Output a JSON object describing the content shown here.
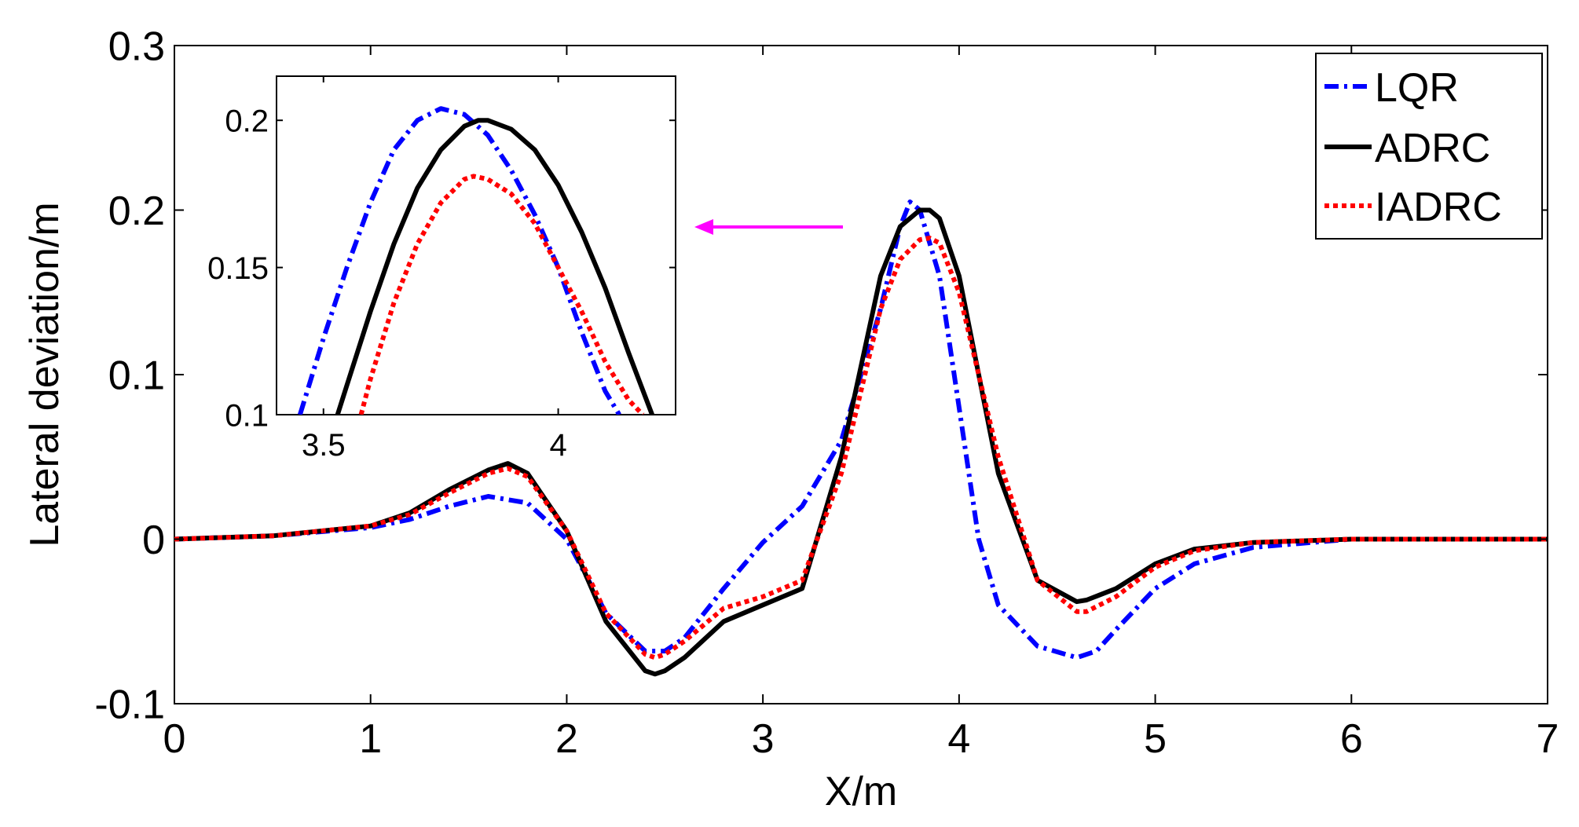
{
  "chart_data": [
    {
      "type": "line",
      "xlabel": "X/m",
      "ylabel": "Lateral deviation/m",
      "xlim": [
        0,
        7
      ],
      "ylim": [
        -0.1,
        0.3
      ],
      "xticks": [
        {
          "value": 0,
          "label": "0"
        },
        {
          "value": 1,
          "label": "1"
        },
        {
          "value": 2,
          "label": "2"
        },
        {
          "value": 3,
          "label": "3"
        },
        {
          "value": 4,
          "label": "4"
        },
        {
          "value": 5,
          "label": "5"
        },
        {
          "value": 6,
          "label": "6"
        },
        {
          "value": 7,
          "label": "7"
        }
      ],
      "yticks": [
        {
          "value": -0.1,
          "label": "-0.1"
        },
        {
          "value": 0,
          "label": "0"
        },
        {
          "value": 0.1,
          "label": "0.1"
        },
        {
          "value": 0.2,
          "label": "0.2"
        },
        {
          "value": 0.3,
          "label": "0.3"
        }
      ],
      "grid": false,
      "legend_position": "top-right",
      "series": [
        {
          "name": "LQR",
          "color": "#0000ff",
          "style": "dash-dot",
          "x": [
            0,
            0.5,
            1.0,
            1.2,
            1.4,
            1.6,
            1.8,
            2.0,
            2.2,
            2.4,
            2.5,
            2.6,
            2.8,
            3.0,
            3.2,
            3.4,
            3.6,
            3.7,
            3.75,
            3.8,
            3.9,
            4.0,
            4.1,
            4.2,
            4.4,
            4.6,
            4.7,
            4.8,
            5.0,
            5.2,
            5.5,
            6.0,
            6.5,
            7.0
          ],
          "y": [
            0,
            0.002,
            0.007,
            0.012,
            0.02,
            0.026,
            0.022,
            0.0,
            -0.045,
            -0.068,
            -0.068,
            -0.06,
            -0.03,
            -0.002,
            0.02,
            0.06,
            0.14,
            0.19,
            0.205,
            0.2,
            0.16,
            0.08,
            0.0,
            -0.04,
            -0.065,
            -0.072,
            -0.068,
            -0.055,
            -0.03,
            -0.015,
            -0.005,
            0.0,
            0.0,
            0.0
          ]
        },
        {
          "name": "ADRC",
          "color": "#000000",
          "style": "solid",
          "x": [
            0,
            0.5,
            1.0,
            1.2,
            1.4,
            1.6,
            1.7,
            1.8,
            2.0,
            2.2,
            2.4,
            2.45,
            2.5,
            2.6,
            2.8,
            3.0,
            3.2,
            3.4,
            3.6,
            3.7,
            3.8,
            3.85,
            3.9,
            4.0,
            4.2,
            4.4,
            4.6,
            4.65,
            4.8,
            5.0,
            5.2,
            5.5,
            6.0,
            6.5,
            7.0
          ],
          "y": [
            0,
            0.002,
            0.008,
            0.016,
            0.03,
            0.042,
            0.046,
            0.04,
            0.005,
            -0.05,
            -0.08,
            -0.082,
            -0.08,
            -0.072,
            -0.05,
            -0.04,
            -0.03,
            0.05,
            0.16,
            0.19,
            0.2,
            0.2,
            0.195,
            0.16,
            0.04,
            -0.025,
            -0.038,
            -0.037,
            -0.03,
            -0.015,
            -0.006,
            -0.002,
            0.0,
            0.0,
            0.0
          ]
        },
        {
          "name": "IADRC",
          "color": "#ff0000",
          "style": "dotted",
          "x": [
            0,
            0.5,
            1.0,
            1.2,
            1.4,
            1.6,
            1.7,
            1.8,
            2.0,
            2.2,
            2.4,
            2.45,
            2.5,
            2.6,
            2.8,
            3.0,
            3.2,
            3.4,
            3.6,
            3.7,
            3.8,
            3.85,
            3.9,
            4.0,
            4.2,
            4.4,
            4.6,
            4.65,
            4.8,
            5.0,
            5.2,
            5.5,
            6.0,
            6.5,
            7.0
          ],
          "y": [
            0,
            0.002,
            0.008,
            0.015,
            0.028,
            0.04,
            0.043,
            0.038,
            0.005,
            -0.045,
            -0.07,
            -0.072,
            -0.07,
            -0.062,
            -0.042,
            -0.035,
            -0.025,
            0.04,
            0.14,
            0.17,
            0.182,
            0.183,
            0.18,
            0.15,
            0.05,
            -0.025,
            -0.044,
            -0.044,
            -0.035,
            -0.017,
            -0.007,
            -0.002,
            0.0,
            0.0,
            0.0
          ]
        }
      ]
    },
    {
      "type": "line",
      "xlim": [
        3.4,
        4.25
      ],
      "ylim": [
        0.1,
        0.215
      ],
      "xticks": [
        {
          "value": 3.5,
          "label": "3.5"
        },
        {
          "value": 4,
          "label": "4"
        }
      ],
      "yticks": [
        {
          "value": 0.1,
          "label": "0.1"
        },
        {
          "value": 0.15,
          "label": "0.15"
        },
        {
          "value": 0.2,
          "label": "0.2"
        }
      ],
      "grid": false,
      "series": [
        {
          "name": "LQR",
          "color": "#0000ff",
          "style": "dash-dot",
          "x": [
            3.45,
            3.5,
            3.55,
            3.6,
            3.65,
            3.7,
            3.75,
            3.8,
            3.85,
            3.9,
            3.95,
            4.0,
            4.05,
            4.1,
            4.13
          ],
          "y": [
            0.1,
            0.126,
            0.15,
            0.172,
            0.19,
            0.2,
            0.204,
            0.202,
            0.195,
            0.183,
            0.168,
            0.15,
            0.128,
            0.108,
            0.1
          ]
        },
        {
          "name": "ADRC",
          "color": "#000000",
          "style": "solid",
          "x": [
            3.53,
            3.55,
            3.6,
            3.65,
            3.7,
            3.75,
            3.8,
            3.83,
            3.85,
            3.9,
            3.95,
            4.0,
            4.05,
            4.1,
            4.15,
            4.2
          ],
          "y": [
            0.1,
            0.11,
            0.135,
            0.158,
            0.177,
            0.19,
            0.198,
            0.2,
            0.2,
            0.197,
            0.19,
            0.178,
            0.162,
            0.143,
            0.121,
            0.1
          ]
        },
        {
          "name": "IADRC",
          "color": "#ff0000",
          "style": "dotted",
          "x": [
            3.58,
            3.6,
            3.65,
            3.7,
            3.75,
            3.8,
            3.82,
            3.85,
            3.9,
            3.95,
            4.0,
            4.05,
            4.1,
            4.15,
            4.18
          ],
          "y": [
            0.1,
            0.112,
            0.138,
            0.158,
            0.172,
            0.18,
            0.181,
            0.18,
            0.175,
            0.165,
            0.15,
            0.135,
            0.118,
            0.105,
            0.1
          ]
        }
      ]
    }
  ],
  "annotation": {
    "arrow_color": "#ff00ff"
  }
}
